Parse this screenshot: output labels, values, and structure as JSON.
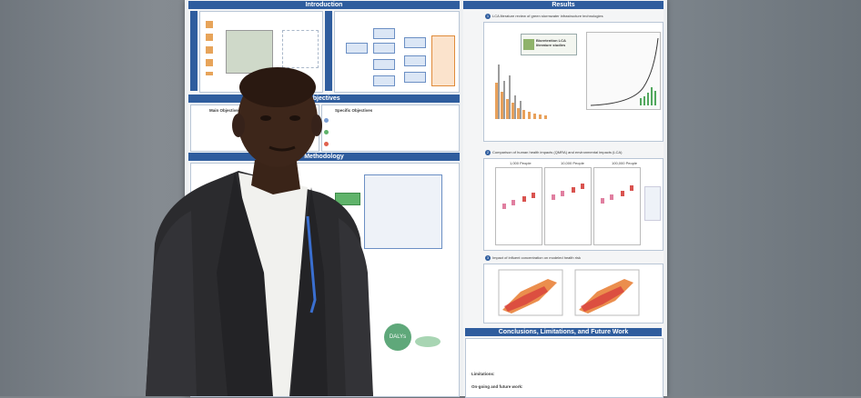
{
  "poster": {
    "sections": {
      "introduction": "Introduction",
      "objectives": "Objectives",
      "methodology": "Methodology",
      "results": "Results",
      "conclusions": "Conclusions, Limitations, and Future Work"
    },
    "main_objective": "Main Objective",
    "specific_objectives": "Specific Objectives",
    "results_items": {
      "r1": "LCA literature review of green stormwater infrastructure technologies",
      "r2": "Comparison of human health impacts (QMRA) and environmental impacts (LCA)",
      "r3": "Impact of influent concentration on modeled health risk"
    },
    "lca_box": "Bioretention LCA literature studies",
    "dalys": "DALYs",
    "panel_titles": [
      "1,000 People",
      "10,000 People",
      "100,000 People"
    ],
    "limitations_label": "Limitations:",
    "ongoing_label": "On-going and future work:"
  },
  "colors": {
    "poster_header": "#2f5d9e",
    "suit": "#2b2b2e",
    "lanyard": "#3a6fd0",
    "wall": "#7d8389"
  }
}
